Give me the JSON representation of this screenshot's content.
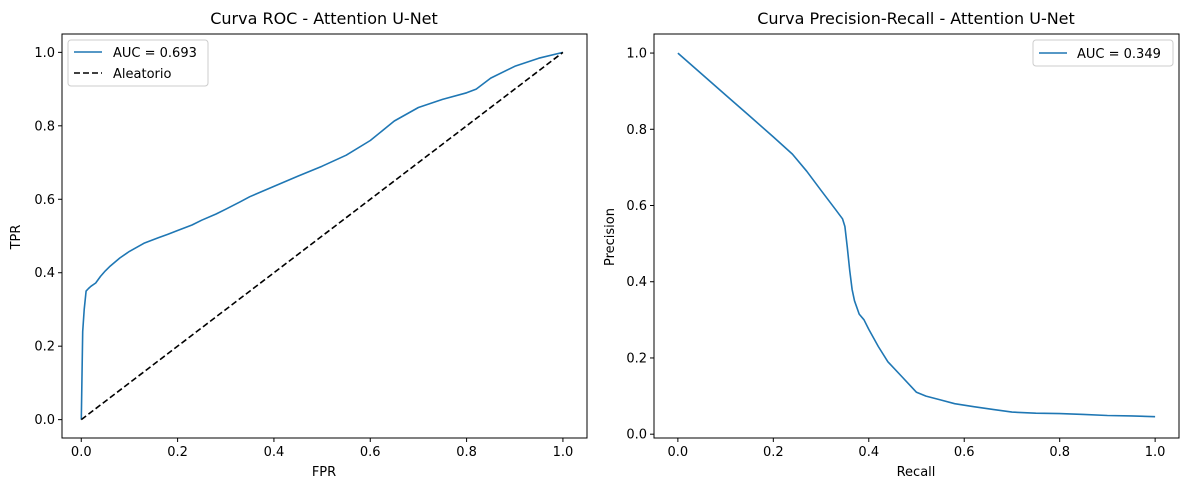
{
  "chart_data": [
    {
      "type": "line",
      "title": "Curva ROC - Attention U-Net",
      "xlabel": "FPR",
      "ylabel": "TPR",
      "xlim": [
        -0.04,
        1.05
      ],
      "ylim": [
        -0.05,
        1.05
      ],
      "xticks": [
        "0.0",
        "0.2",
        "0.4",
        "0.6",
        "0.8",
        "1.0"
      ],
      "yticks": [
        "0.0",
        "0.2",
        "0.4",
        "0.6",
        "0.8",
        "1.0"
      ],
      "legend_position": "top-left",
      "grid": false,
      "series": [
        {
          "name": "AUC = 0.693",
          "color": "#1f77b4",
          "style": "solid",
          "x": [
            0,
            0.003,
            0.006,
            0.01,
            0.015,
            0.02,
            0.03,
            0.04,
            0.05,
            0.06,
            0.08,
            0.1,
            0.13,
            0.16,
            0.18,
            0.2,
            0.23,
            0.25,
            0.28,
            0.3,
            0.33,
            0.35,
            0.4,
            0.45,
            0.5,
            0.55,
            0.6,
            0.65,
            0.7,
            0.75,
            0.8,
            0.82,
            0.85,
            0.9,
            0.95,
            1.0
          ],
          "y": [
            0,
            0.24,
            0.3,
            0.35,
            0.357,
            0.363,
            0.372,
            0.39,
            0.405,
            0.418,
            0.44,
            0.458,
            0.48,
            0.495,
            0.505,
            0.515,
            0.53,
            0.543,
            0.56,
            0.573,
            0.593,
            0.607,
            0.635,
            0.663,
            0.69,
            0.72,
            0.76,
            0.813,
            0.85,
            0.872,
            0.89,
            0.9,
            0.93,
            0.962,
            0.984,
            1.0
          ]
        },
        {
          "name": "Aleatorio",
          "color": "#000000",
          "style": "dashed",
          "x": [
            0,
            1
          ],
          "y": [
            0,
            1
          ]
        }
      ]
    },
    {
      "type": "line",
      "title": "Curva Precision-Recall - Attention U-Net",
      "xlabel": "Recall",
      "ylabel": "Precision",
      "xlim": [
        -0.05,
        1.05
      ],
      "ylim": [
        -0.01,
        1.05
      ],
      "xticks": [
        "0.0",
        "0.2",
        "0.4",
        "0.6",
        "0.8",
        "1.0"
      ],
      "yticks": [
        "0.0",
        "0.2",
        "0.4",
        "0.6",
        "0.8",
        "1.0"
      ],
      "legend_position": "top-right",
      "grid": false,
      "series": [
        {
          "name": "AUC = 0.349",
          "color": "#1f77b4",
          "style": "solid",
          "x": [
            0,
            0.05,
            0.1,
            0.15,
            0.2,
            0.24,
            0.27,
            0.3,
            0.33,
            0.345,
            0.35,
            0.355,
            0.36,
            0.365,
            0.37,
            0.38,
            0.39,
            0.4,
            0.42,
            0.44,
            0.47,
            0.5,
            0.52,
            0.55,
            0.58,
            0.62,
            0.66,
            0.7,
            0.75,
            0.8,
            0.85,
            0.9,
            0.95,
            1.0
          ],
          "y": [
            1.0,
            0.945,
            0.89,
            0.835,
            0.78,
            0.735,
            0.69,
            0.64,
            0.59,
            0.565,
            0.545,
            0.49,
            0.43,
            0.38,
            0.35,
            0.315,
            0.3,
            0.275,
            0.23,
            0.19,
            0.15,
            0.11,
            0.1,
            0.09,
            0.08,
            0.072,
            0.065,
            0.058,
            0.055,
            0.054,
            0.052,
            0.049,
            0.048,
            0.046
          ]
        }
      ]
    }
  ]
}
